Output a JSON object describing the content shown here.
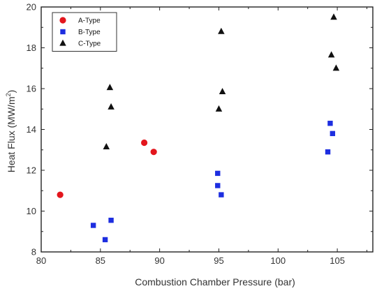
{
  "chart_data": {
    "type": "scatter",
    "title": "",
    "xlabel": "Combustion Chamber Pressure (bar)",
    "ylabel_main": "Heat Flux (MW/m",
    "ylabel_sup": "2",
    "ylabel_end": ")",
    "xlim": [
      80,
      108
    ],
    "ylim": [
      8,
      20
    ],
    "xticks": [
      80,
      85,
      90,
      95,
      100,
      105
    ],
    "yticks": [
      8,
      10,
      12,
      14,
      16,
      18,
      20
    ],
    "grid": false,
    "legend_position": "top-left",
    "series": [
      {
        "name": "A-Type",
        "marker": "circle",
        "color": "#e3161d",
        "points": [
          {
            "x": 81.6,
            "y": 10.8
          },
          {
            "x": 88.7,
            "y": 13.35
          },
          {
            "x": 89.5,
            "y": 12.9
          }
        ]
      },
      {
        "name": "B-Type",
        "marker": "square",
        "color": "#1d2ee0",
        "points": [
          {
            "x": 84.4,
            "y": 9.3
          },
          {
            "x": 85.4,
            "y": 8.6
          },
          {
            "x": 85.9,
            "y": 9.55
          },
          {
            "x": 94.9,
            "y": 11.85
          },
          {
            "x": 94.9,
            "y": 11.25
          },
          {
            "x": 95.2,
            "y": 10.8
          },
          {
            "x": 104.2,
            "y": 12.9
          },
          {
            "x": 104.4,
            "y": 14.3
          },
          {
            "x": 104.6,
            "y": 13.8
          }
        ]
      },
      {
        "name": "C-Type",
        "marker": "triangle",
        "color": "#111111",
        "points": [
          {
            "x": 85.5,
            "y": 13.15
          },
          {
            "x": 85.8,
            "y": 16.05
          },
          {
            "x": 85.9,
            "y": 15.1
          },
          {
            "x": 95.0,
            "y": 15.0
          },
          {
            "x": 95.2,
            "y": 18.8
          },
          {
            "x": 95.3,
            "y": 15.85
          },
          {
            "x": 104.5,
            "y": 17.65
          },
          {
            "x": 104.7,
            "y": 19.5
          },
          {
            "x": 104.9,
            "y": 17.0
          }
        ]
      }
    ]
  }
}
